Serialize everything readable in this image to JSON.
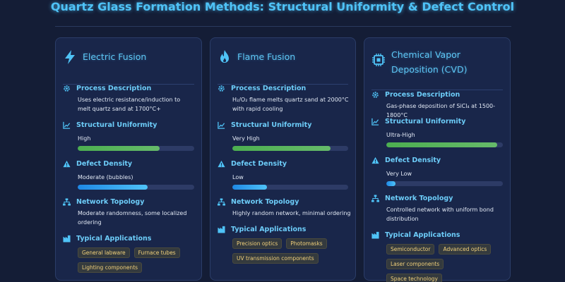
{
  "title": "Quartz Glass Formation Methods: Structural Uniformity & Defect Control",
  "colors": {
    "accent": "#4fc3f7",
    "green_bar": "#4caf50",
    "blue_bar": "#29b6f6",
    "tag_text": "#f1d07a",
    "background": "#141d36"
  },
  "cards": [
    {
      "title": "Electric Fusion",
      "icon": "lightning-icon",
      "process_label": "Process Description",
      "process_text": "Uses electric resistance/induction to melt quartz sand at 1700°C+",
      "uniformity_label": "Structural Uniformity",
      "uniformity_text": "High",
      "uniformity_level": 0.7,
      "defect_label": "Defect Density",
      "defect_text": "Moderate (bubbles)",
      "defect_level": 0.6,
      "topology_label": "Network Topology",
      "topology_text": "Moderate randomness, some localized ordering",
      "applications_label": "Typical Applications",
      "applications": [
        "General labware",
        "Furnace tubes",
        "Lighting components"
      ]
    },
    {
      "title": "Flame Fusion",
      "icon": "flame-icon",
      "process_label": "Process Description",
      "process_text": "H₂/O₂ flame melts quartz sand at 2000°C with rapid cooling",
      "uniformity_label": "Structural Uniformity",
      "uniformity_text": "Very High",
      "uniformity_level": 0.85,
      "defect_label": "Defect Density",
      "defect_text": "Low",
      "defect_level": 0.3,
      "topology_label": "Network Topology",
      "topology_text": "Highly random network, minimal ordering",
      "applications_label": "Typical Applications",
      "applications": [
        "Precision optics",
        "Photomasks",
        "UV transmission components"
      ]
    },
    {
      "title": "Chemical Vapor Deposition (CVD)",
      "icon": "chip-icon",
      "process_label": "Process Description",
      "process_text": "Gas-phase deposition of SiCl₄ at 1500-1800°C",
      "uniformity_label": "Structural Uniformity",
      "uniformity_text": "Ultra-High",
      "uniformity_level": 0.95,
      "defect_label": "Defect Density",
      "defect_text": "Very Low",
      "defect_level": 0.08,
      "topology_label": "Network Topology",
      "topology_text": "Controlled network with uniform bond distribution",
      "applications_label": "Typical Applications",
      "applications": [
        "Semiconductor",
        "Advanced optics",
        "Laser components",
        "Space technology"
      ]
    }
  ]
}
